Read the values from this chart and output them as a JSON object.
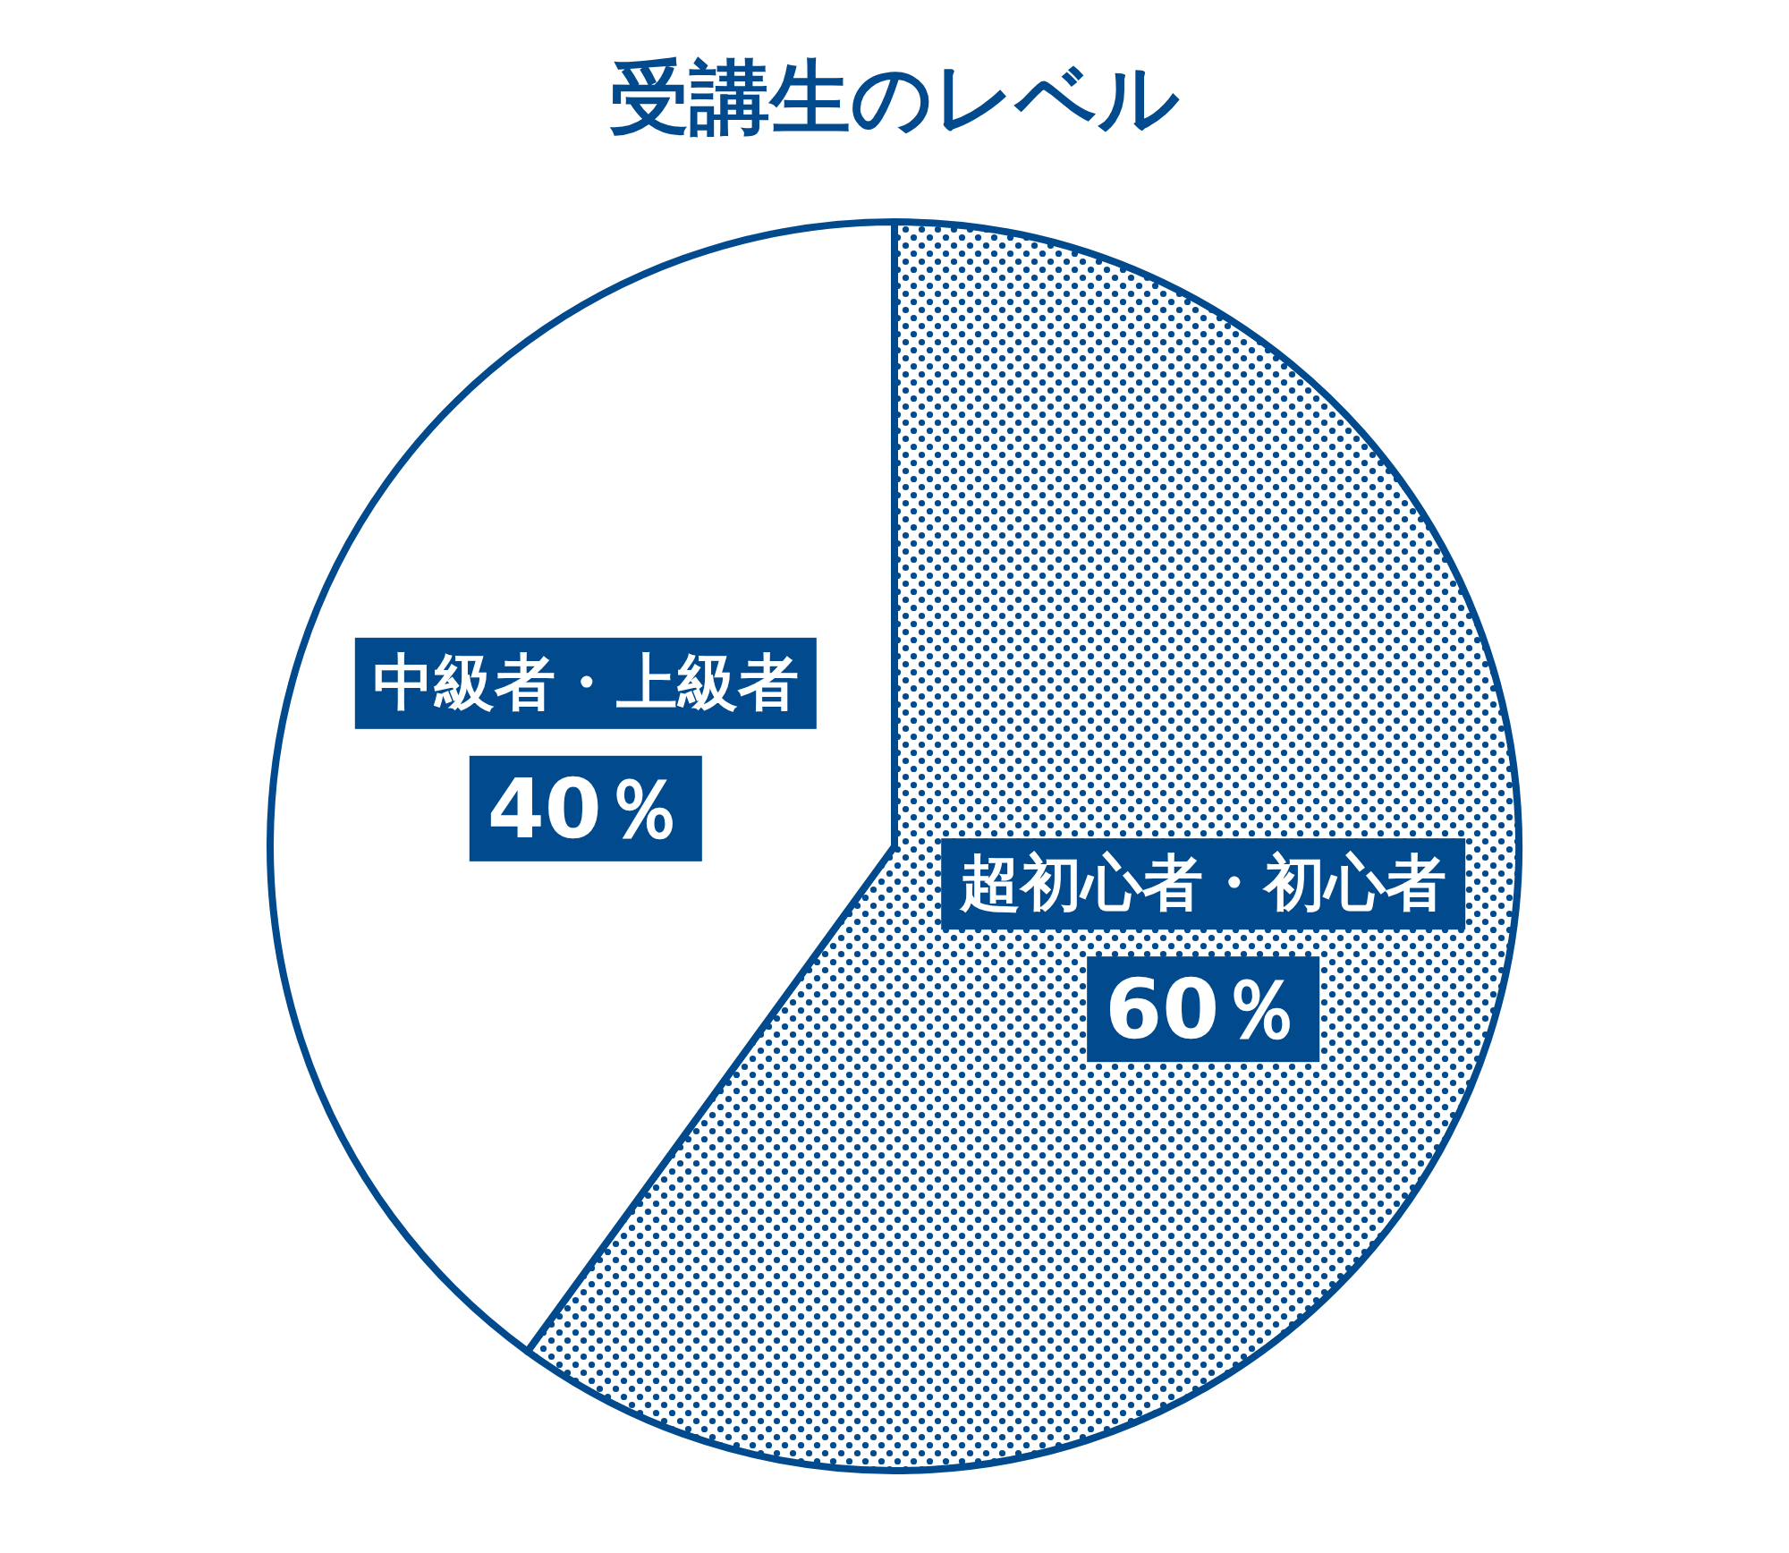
{
  "chart_data": {
    "type": "pie",
    "title": "受講生のレベル",
    "categories": [
      "超初心者・初心者",
      "中級者・上級者"
    ],
    "values": [
      60,
      40
    ],
    "colors": [
      "#004a8d",
      "#ffffff"
    ],
    "value_labels": [
      "60％",
      "40％"
    ]
  }
}
